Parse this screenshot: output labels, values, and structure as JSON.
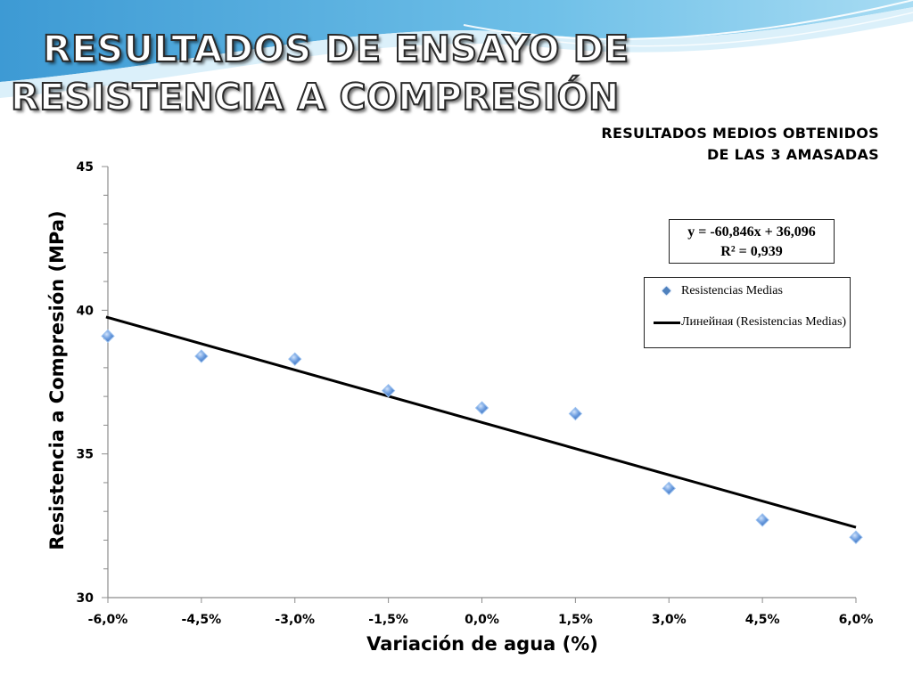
{
  "slide": {
    "title_line_1": "RESULTADOS DE ENSAYO DE",
    "title_line_2": "RESISTENCIA A COMPRESIÓN",
    "subtitle_line_1": "RESULTADOS MEDIOS OBTENIDOS",
    "subtitle_line_2": "DE LAS 3 AMASADAS"
  },
  "equation_box": {
    "equation": "y = -60,846x + 36,096",
    "r_squared": "R² = 0,939"
  },
  "legend": {
    "items": [
      {
        "label": "Resistencias Medias",
        "marker": "diamond"
      },
      {
        "label": "Линейная (Resistencias Medias)",
        "marker": "line"
      }
    ]
  },
  "colors": {
    "marker": "#4f81bd",
    "trendline": "#000000",
    "wave_dark": "#4aa3d8",
    "wave_light": "#bfe3f5"
  },
  "chart_data": {
    "type": "scatter",
    "xlabel": "Variación de agua (%)",
    "ylabel": "Resistencia a Compresión (MPa)",
    "xlim": [
      -0.06,
      0.06
    ],
    "ylim": [
      30,
      45
    ],
    "x_ticks": [
      -0.06,
      -0.045,
      -0.03,
      -0.015,
      0.0,
      0.015,
      0.03,
      0.045,
      0.06
    ],
    "x_tick_labels": [
      "-6,0%",
      "-4,5%",
      "-3,0%",
      "-1,5%",
      "0,0%",
      "1,5%",
      "3,0%",
      "4,5%",
      "6,0%"
    ],
    "y_ticks": [
      30,
      35,
      40,
      45
    ],
    "y_tick_labels": [
      "30",
      "35",
      "40",
      "45"
    ],
    "y_minor_step": 1,
    "grid": false,
    "legend_position": "right",
    "series": [
      {
        "name": "Resistencias Medias",
        "x": [
          -0.06,
          -0.045,
          -0.03,
          -0.015,
          0.0,
          0.015,
          0.03,
          0.045,
          0.06
        ],
        "y": [
          39.1,
          38.4,
          38.3,
          37.2,
          36.6,
          36.4,
          33.8,
          32.7,
          32.1
        ]
      }
    ],
    "trendline": {
      "name": "Линейная (Resistencias Medias)",
      "slope": -60.846,
      "intercept": 36.096
    }
  }
}
